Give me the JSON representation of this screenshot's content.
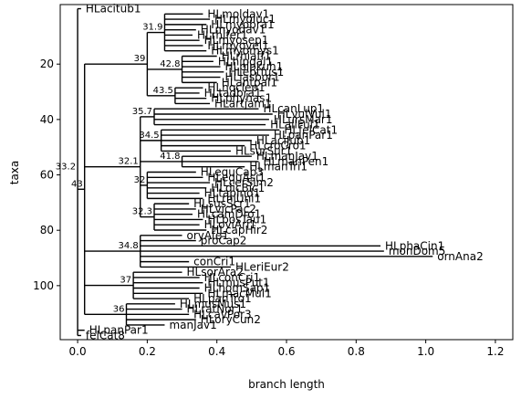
{
  "chart_data": {
    "type": "phylogenetic-tree",
    "xlabel": "branch length",
    "ylabel": "taxa",
    "xlim": [
      -0.05,
      1.25
    ],
    "ylim": [
      119.5,
      -1.5
    ],
    "x_ticks": [
      0.0,
      0.2,
      0.4,
      0.6,
      0.8,
      1.0,
      1.2
    ],
    "x_tick_labels": [
      "0.0",
      "0.2",
      "0.4",
      "0.6",
      "0.8",
      "1.0",
      "1.2"
    ],
    "y_ticks": [
      20,
      40,
      60,
      80,
      100
    ],
    "y_tick_labels": [
      "20",
      "40",
      "60",
      "80",
      "100"
    ],
    "grid": false,
    "tree": {
      "support": "33.2",
      "x": 0.0,
      "children": [
        {
          "tip": "HLacitub1",
          "x": 0.01
        },
        {
          "support": "43",
          "x": 0.02,
          "children": [
            {
              "support": "39",
              "x": 0.2,
              "children": [
                {
                  "support": "31.9",
                  "x": 0.25,
                  "children": [
                    {
                      "tip": "HLmoldav1",
                      "x": 0.36
                    },
                    {
                      "tip": "HLmyoluc1",
                      "x": 0.38
                    },
                    {
                      "tip": "HLmyobra1",
                      "x": 0.37
                    },
                    {
                      "tip": "HLmyodav1",
                      "x": 0.34
                    },
                    {
                      "tip": "HLrhifer1",
                      "x": 0.33
                    },
                    {
                      "tip": "HLmyosep1",
                      "x": 0.35
                    },
                    {
                      "tip": "HLmyovel1",
                      "x": 0.36
                    },
                    {
                      "tip": "HLmyomys1",
                      "x": 0.37
                    }
                  ]
                },
                {
                  "support": "42.8",
                  "x": 0.3,
                  "children": [
                    {
                      "tip": "HLrhiaff1",
                      "x": 0.4
                    },
                    {
                      "tip": "HLhipgal1",
                      "x": 0.39
                    },
                    {
                      "tip": "HLpipkuh1",
                      "x": 0.41
                    },
                    {
                      "tip": "HLeptfus1",
                      "x": 0.42
                    },
                    {
                      "tip": "HLlasbor1",
                      "x": 0.41
                    },
                    {
                      "tip": "HLantpal1",
                      "x": 0.4
                    }
                  ]
                },
                {
                  "support": "43.5",
                  "x": 0.28,
                  "children": [
                    {
                      "tip": "HLnoclep1",
                      "x": 0.36
                    },
                    {
                      "tip": "HLtadbra1",
                      "x": 0.35
                    },
                    {
                      "tip": "HLphyhas1",
                      "x": 0.37
                    },
                    {
                      "tip": "HLartjam1",
                      "x": 0.38
                    }
                  ]
                }
              ]
            },
            {
              "support": "32.1",
              "x": 0.18,
              "children": [
                {
                  "support": "35.7",
                  "x": 0.22,
                  "children": [
                    {
                      "tip": "HLcanLup1",
                      "x": 0.52
                    },
                    {
                      "tip": "HLvulVul1",
                      "x": 0.56
                    },
                    {
                      "tip": "HLursMar1",
                      "x": 0.55
                    },
                    {
                      "tip": "HLailFul1",
                      "x": 0.54
                    }
                  ]
                },
                {
                  "support": "34.5",
                  "x": 0.24,
                  "children": [
                    {
                      "tip": "HLfelCat1",
                      "x": 0.58
                    },
                    {
                      "tip": "HLpanPar1",
                      "x": 0.55
                    },
                    {
                      "tip": "HLaciJub1",
                      "x": 0.5
                    },
                    {
                      "tip": "HLcroCro1",
                      "x": 0.48
                    },
                    {
                      "tip": "HLsurSur1",
                      "x": 0.44
                    }
                  ]
                },
                {
                  "support": "41.8",
                  "x": 0.3,
                  "children": [
                    {
                      "tip": "HLmanJav1",
                      "x": 0.5
                    },
                    {
                      "tip": "HLmanPen1",
                      "x": 0.52
                    },
                    {
                      "tip": "HLmanTri1",
                      "x": 0.48
                    }
                  ]
                },
                {
                  "support": "32",
                  "x": 0.2,
                  "children": [
                    {
                      "tip": "HLequCab3",
                      "x": 0.34
                    },
                    {
                      "tip": "HLequAsi1",
                      "x": 0.36
                    },
                    {
                      "tip": "HLcerSim2",
                      "x": 0.38
                    },
                    {
                      "tip": "HLdicBic1",
                      "x": 0.37
                    },
                    {
                      "tip": "HLtapInd1",
                      "x": 0.35
                    },
                    {
                      "tip": "HLrhiUni1",
                      "x": 0.36
                    }
                  ]
                },
                {
                  "support": "32.3",
                  "x": 0.22,
                  "children": [
                    {
                      "tip": "HLsusScr1",
                      "x": 0.32
                    },
                    {
                      "tip": "HLvicPac2",
                      "x": 0.34
                    },
                    {
                      "tip": "HLcamDro1",
                      "x": 0.33
                    },
                    {
                      "tip": "HLbosTau1",
                      "x": 0.36
                    },
                    {
                      "tip": "HLoviAri1",
                      "x": 0.35
                    },
                    {
                      "tip": "HLcapHir2",
                      "x": 0.37
                    }
                  ]
                }
              ]
            },
            {
              "support": "34.8",
              "x": 0.18,
              "children": [
                {
                  "tip": "oryAfe1",
                  "x": 0.3
                },
                {
                  "tip": "proCap2",
                  "x": 0.34
                },
                {
                  "tip": "HLphaCin1",
                  "x": 0.87
                },
                {
                  "tip": "monDom5",
                  "x": 0.88
                },
                {
                  "tip": "ornAna2",
                  "x": 1.02
                },
                {
                  "tip": "conCri1",
                  "x": 0.32
                },
                {
                  "tip": "HLeriEur2",
                  "x": 0.44
                }
              ]
            },
            {
              "support": "37",
              "x": 0.16,
              "children": [
                {
                  "tip": "HLsorAra2",
                  "x": 0.3
                },
                {
                  "tip": "HLconCri1",
                  "x": 0.35
                },
                {
                  "tip": "HLmusPut1",
                  "x": 0.36
                },
                {
                  "tip": "HLhomSap1",
                  "x": 0.35
                },
                {
                  "tip": "HLmacMul1",
                  "x": 0.36
                },
                {
                  "tip": "HLpanTro1",
                  "x": 0.32
                }
              ]
            },
            {
              "support": "36",
              "x": 0.14,
              "children": [
                {
                  "tip": "HLmusMus1",
                  "x": 0.28
                },
                {
                  "tip": "HLratNor1",
                  "x": 0.3
                },
                {
                  "tip": "HLcavPor3",
                  "x": 0.32
                },
                {
                  "tip": "HLoryCun2",
                  "x": 0.34
                },
                {
                  "tip": "manJav1",
                  "x": 0.25
                }
              ]
            }
          ]
        },
        {
          "tip": "HLpanPar1",
          "x": 0.02
        },
        {
          "tip": "felCat8",
          "x": 0.01
        }
      ]
    },
    "tree_tips_note": ""
  }
}
